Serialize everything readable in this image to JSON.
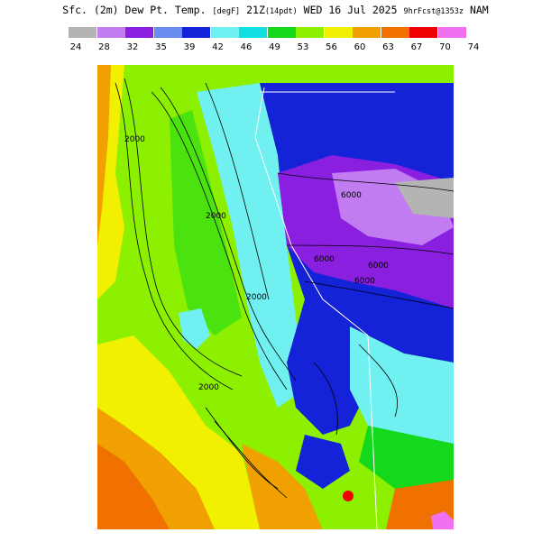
{
  "title": {
    "main": "Sfc. (2m) Dew Pt. Temp.",
    "units": "[degF]",
    "valid": "21Z",
    "local": "(14pdt)",
    "date": "WED 16 Jul 2025",
    "forecast": "9hrFcst@1353z",
    "model": "NAM"
  },
  "legend": {
    "labels": [
      "24",
      "28",
      "32",
      "35",
      "39",
      "42",
      "46",
      "49",
      "53",
      "56",
      "60",
      "63",
      "67",
      "70",
      "74"
    ],
    "colors": [
      "#b4b4b4",
      "#c07cf0",
      "#8a1fe0",
      "#6a8cf0",
      "#1422d8",
      "#70f0f0",
      "#10e0e0",
      "#14d81c",
      "#8cf000",
      "#f0f000",
      "#f0a000",
      "#f07000",
      "#f00000",
      "#f070f0"
    ]
  },
  "map": {
    "contour_labels": [
      "2000",
      "2000",
      "2000",
      "6000",
      "6000",
      "6000",
      "6000",
      "2000"
    ],
    "colors": {
      "ocean_orange": "#f0a000",
      "green": "#8cf000",
      "yellow": "#f0f000",
      "dark_green": "#14d81c",
      "cyan": "#70f0f0",
      "blue": "#1422d8",
      "purple": "#8a1fe0",
      "lavender": "#c07cf0",
      "grey": "#b4b4b4",
      "red": "#f00000",
      "magenta": "#f070f0"
    }
  }
}
